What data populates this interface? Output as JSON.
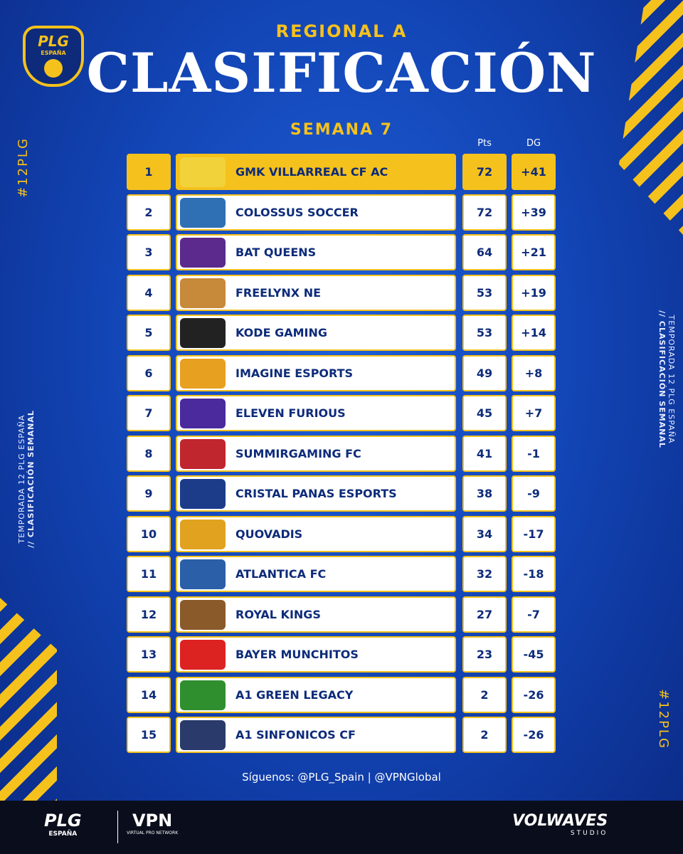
{
  "header": {
    "logo": {
      "title": "PLG",
      "subtitle": "ESPAÑA"
    },
    "kicker": "REGIONAL A",
    "title": "CLASIFICACIÓN",
    "subtitle": "SEMANA 7"
  },
  "side": {
    "hashtag": "#12PLG",
    "line1": "TEMPORADA 12 PLG ESPAÑA",
    "line2": "// CLASIFICACIÓN SEMANAL"
  },
  "table": {
    "columns": [
      "Pts",
      "DG"
    ],
    "rows": [
      [
        1,
        "GMK VILLARREAL CF AC",
        72,
        "+41"
      ],
      [
        2,
        "COLOSSUS SOCCER",
        72,
        "+39"
      ],
      [
        3,
        "BAT QUEENS",
        64,
        "+21"
      ],
      [
        4,
        "FREELYNX NE",
        53,
        "+19"
      ],
      [
        5,
        "KODE GAMING",
        53,
        "+14"
      ],
      [
        6,
        "IMAGINE ESPORTS",
        49,
        "+8"
      ],
      [
        7,
        "ELEVEN FURIOUS",
        45,
        "+7"
      ],
      [
        8,
        "SUMMIRGAMING FC",
        41,
        "-1"
      ],
      [
        9,
        "CRISTAL PANAS ESPORTS",
        38,
        "-9"
      ],
      [
        10,
        "QUOVADIS",
        34,
        "-17"
      ],
      [
        11,
        "ATLANTICA FC",
        32,
        "-18"
      ],
      [
        12,
        "ROYAL KINGS",
        27,
        "-7"
      ],
      [
        13,
        "BAYER MUNCHITOS",
        23,
        "-45"
      ],
      [
        14,
        "A1 GREEN LEGACY",
        2,
        "-26"
      ],
      [
        15,
        "A1 SINFONICOS CF",
        2,
        "-26"
      ]
    ]
  },
  "footer": {
    "follow": "Síguenos: @PLG_Spain | @VPNGlobal",
    "sponsors": [
      {
        "name": "PLG",
        "tagline": "ESPAÑA"
      },
      {
        "name": "VPN",
        "tagline": "VIRTUAL PRO NETWORK"
      },
      {
        "name": "VOLWAVES",
        "tagline": "STUDIO"
      }
    ]
  }
}
